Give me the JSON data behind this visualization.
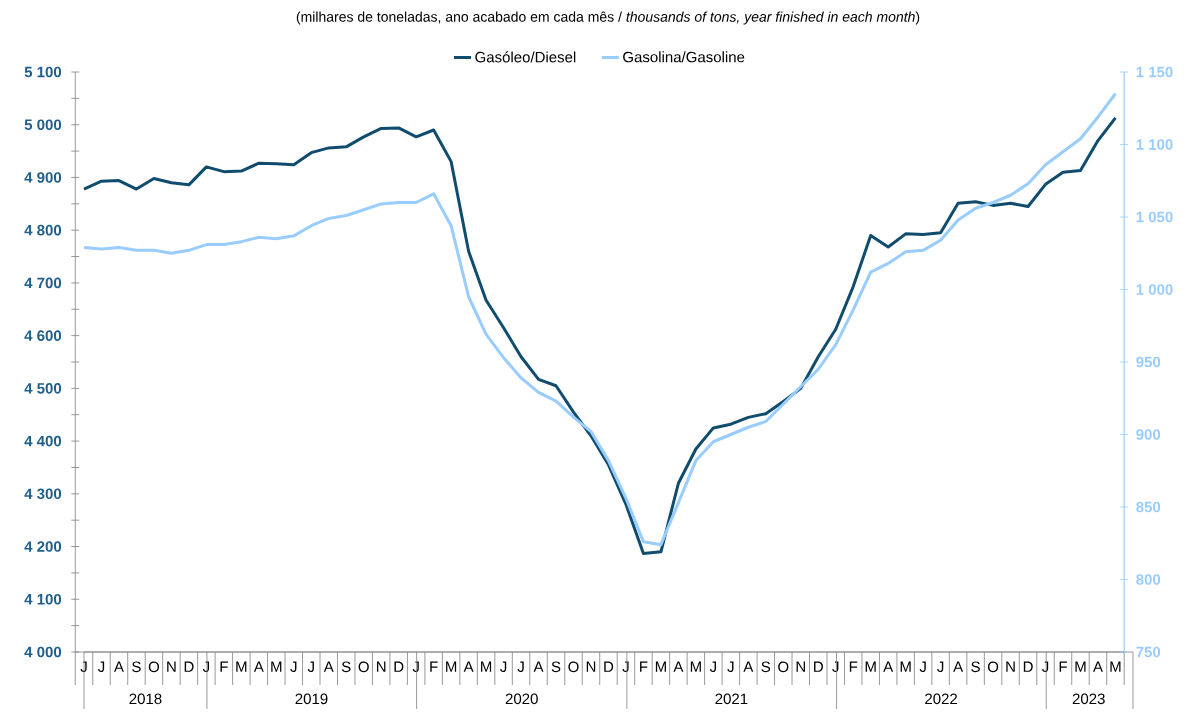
{
  "chart_data": {
    "type": "line",
    "title": "(milhares de toneladas, ano acabado em cada mês / *thousands of tons, year finished in each month*)",
    "categories": [
      "J",
      "J",
      "A",
      "S",
      "O",
      "N",
      "D",
      "J",
      "F",
      "M",
      "A",
      "M",
      "J",
      "J",
      "A",
      "S",
      "O",
      "N",
      "D",
      "J",
      "F",
      "M",
      "A",
      "M",
      "J",
      "J",
      "A",
      "S",
      "O",
      "N",
      "D",
      "J",
      "F",
      "M",
      "A",
      "M",
      "J",
      "J",
      "A",
      "S",
      "O",
      "N",
      "D",
      "J",
      "F",
      "M",
      "A",
      "M",
      "J",
      "J",
      "A",
      "S",
      "O",
      "N",
      "D",
      "J",
      "F",
      "M",
      "A",
      "M"
    ],
    "x2lim": [
      "2018-06-01",
      "2023-06-01"
    ],
    "x2ticks": [
      {
        "value": "2018-09-16",
        "label": "2018"
      },
      {
        "value": "2019-07-02",
        "label": "2019"
      },
      {
        "value": "2020-07-02",
        "label": "2020"
      },
      {
        "value": "2021-07-02",
        "label": "2021"
      },
      {
        "value": "2022-07-02",
        "label": "2022"
      },
      {
        "value": "2023-03-16",
        "label": "2023"
      }
    ],
    "ylim": [
      4000,
      5100
    ],
    "yticks": [
      {
        "value": 4000,
        "label": "4 000"
      },
      {
        "value": 4050,
        "label": null
      },
      {
        "value": 4100,
        "label": "4 100"
      },
      {
        "value": 4150,
        "label": null
      },
      {
        "value": 4200,
        "label": "4 200"
      },
      {
        "value": 4250,
        "label": null
      },
      {
        "value": 4300,
        "label": "4 300"
      },
      {
        "value": 4350,
        "label": null
      },
      {
        "value": 4400,
        "label": "4 400"
      },
      {
        "value": 4450,
        "label": null
      },
      {
        "value": 4500,
        "label": "4 500"
      },
      {
        "value": 4550,
        "label": null
      },
      {
        "value": 4600,
        "label": "4 600"
      },
      {
        "value": 4650,
        "label": null
      },
      {
        "value": 4700,
        "label": "4 700"
      },
      {
        "value": 4750,
        "label": null
      },
      {
        "value": 4800,
        "label": "4 800"
      },
      {
        "value": 4850,
        "label": null
      },
      {
        "value": 4900,
        "label": "4 900"
      },
      {
        "value": 4950,
        "label": null
      },
      {
        "value": 5000,
        "label": "5 000"
      },
      {
        "value": 5050,
        "label": null
      },
      {
        "value": 5100,
        "label": "5 100"
      }
    ],
    "y2lim": [
      750,
      1150
    ],
    "y2ticks": [
      {
        "value": 750,
        "label": "750"
      },
      {
        "value": 800,
        "label": "800"
      },
      {
        "value": 850,
        "label": "850"
      },
      {
        "value": 900,
        "label": "900"
      },
      {
        "value": 950,
        "label": "950"
      },
      {
        "value": 1000,
        "label": "1 000"
      },
      {
        "value": 1050,
        "label": "1 050"
      },
      {
        "value": 1100,
        "label": "1 100"
      },
      {
        "value": 1150,
        "label": "1 150"
      }
    ],
    "legend": "top",
    "series": [
      {
        "name": "Gasóleo/Diesel",
        "color": "#0f4c6e",
        "values": [
          4878,
          4893,
          4894,
          4878,
          4898,
          4890,
          4886,
          4920,
          4911,
          4912,
          4927,
          4926,
          4924,
          4947,
          4956,
          4958,
          4977,
          4993,
          4994,
          4977,
          4990,
          4930,
          4760,
          4667,
          4615,
          4560,
          4517,
          4505,
          4455,
          4410,
          4355,
          4280,
          4187,
          4190,
          4320,
          4385,
          4425,
          4432,
          4445,
          4452,
          4475,
          4500,
          4560,
          4612,
          4693,
          4790,
          4768,
          4793,
          4792,
          4795,
          4851,
          4854,
          4847,
          4851,
          4845,
          4887,
          4910,
          4913,
          4970,
          5013
        ]
      },
      {
        "name": "Gasolina/Gasoline",
        "color": "#99ccff",
        "axis": "y2",
        "values": [
          1029,
          1028,
          1029,
          1027,
          1027,
          1025,
          1027,
          1031,
          1031,
          1033,
          1036,
          1035,
          1037,
          1044,
          1049,
          1051,
          1055,
          1059,
          1060,
          1060,
          1066,
          1044,
          995,
          969,
          953,
          939,
          929,
          923,
          912,
          902,
          882,
          856,
          826,
          824,
          853,
          882,
          895,
          900,
          905,
          909,
          921,
          933,
          945,
          962,
          986,
          1012,
          1018,
          1026,
          1027,
          1034,
          1048,
          1056,
          1060,
          1065,
          1073,
          1086,
          1095,
          1104,
          1119,
          1135
        ]
      }
    ]
  }
}
